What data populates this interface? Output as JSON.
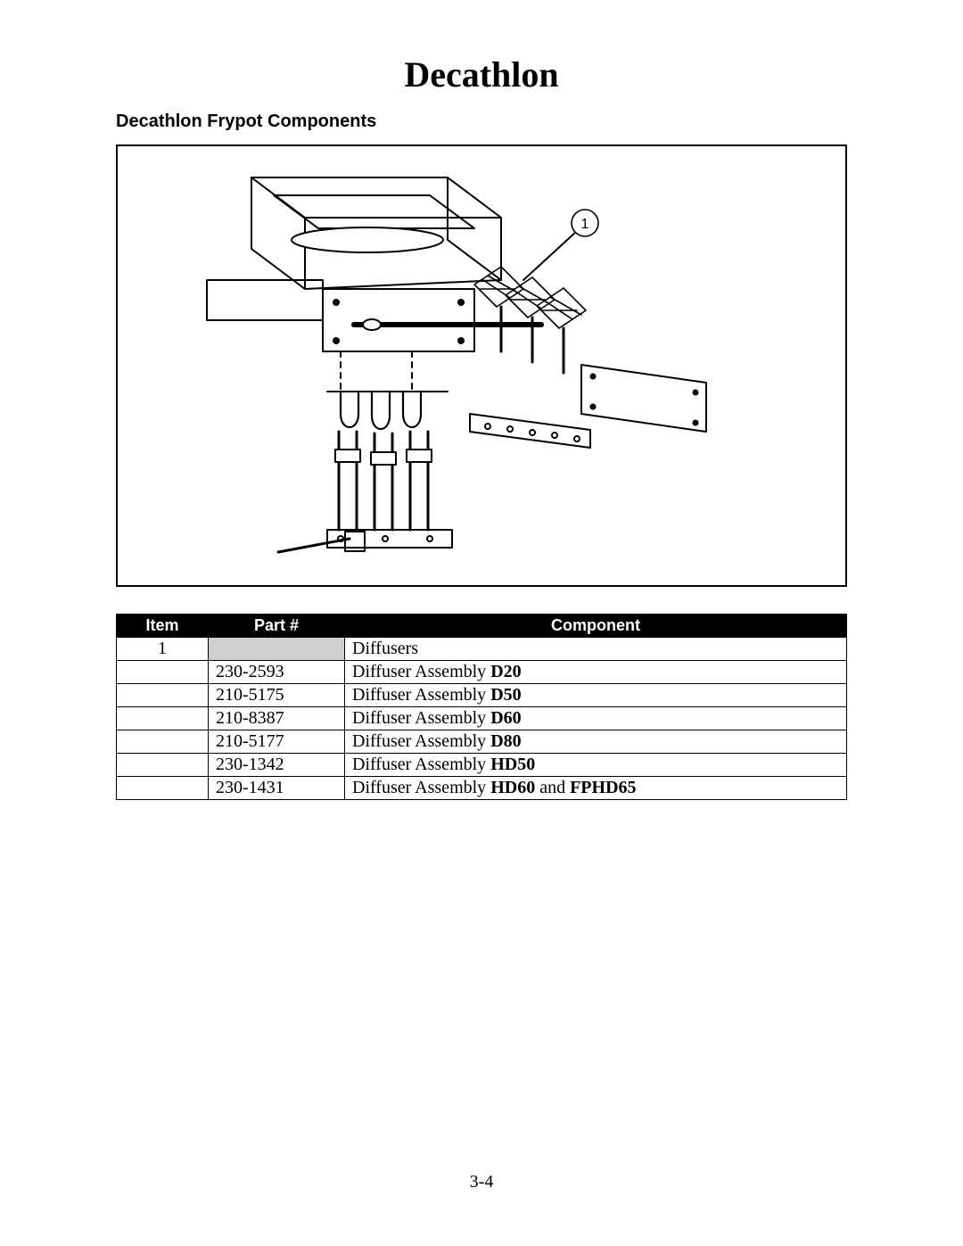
{
  "title": "Decathlon",
  "subtitle": "Decathlon Frypot Components",
  "page_number": "3-4",
  "callout_label": "1",
  "table": {
    "headers": {
      "item": "Item",
      "part": "Part #",
      "component": "Component"
    },
    "rows": [
      {
        "item": "1",
        "part": "",
        "component_prefix": "Diffusers",
        "component_bold": "",
        "component_suffix": "",
        "shaded_part": true
      },
      {
        "item": "",
        "part": "230-2593",
        "component_prefix": "Diffuser Assembly ",
        "component_bold": "D20",
        "component_suffix": ""
      },
      {
        "item": "",
        "part": "210-5175",
        "component_prefix": "Diffuser Assembly ",
        "component_bold": "D50",
        "component_suffix": ""
      },
      {
        "item": "",
        "part": "210-8387",
        "component_prefix": "Diffuser Assembly ",
        "component_bold": "D60",
        "component_suffix": ""
      },
      {
        "item": "",
        "part": "210-5177",
        "component_prefix": "Diffuser Assembly ",
        "component_bold": "D80",
        "component_suffix": ""
      },
      {
        "item": "",
        "part": "230-1342",
        "component_prefix": "Diffuser Assembly ",
        "component_bold": "HD50",
        "component_suffix": ""
      },
      {
        "item": "",
        "part": "230-1431",
        "component_prefix": "Diffuser Assembly ",
        "component_bold": "HD60",
        "component_suffix": " and ",
        "component_bold2": "FPHD65"
      }
    ]
  },
  "colors": {
    "text": "#000000",
    "background": "#ffffff",
    "table_header_bg": "#000000",
    "table_header_fg": "#ffffff",
    "shaded_cell": "#d0d0d0",
    "border": "#000000"
  }
}
